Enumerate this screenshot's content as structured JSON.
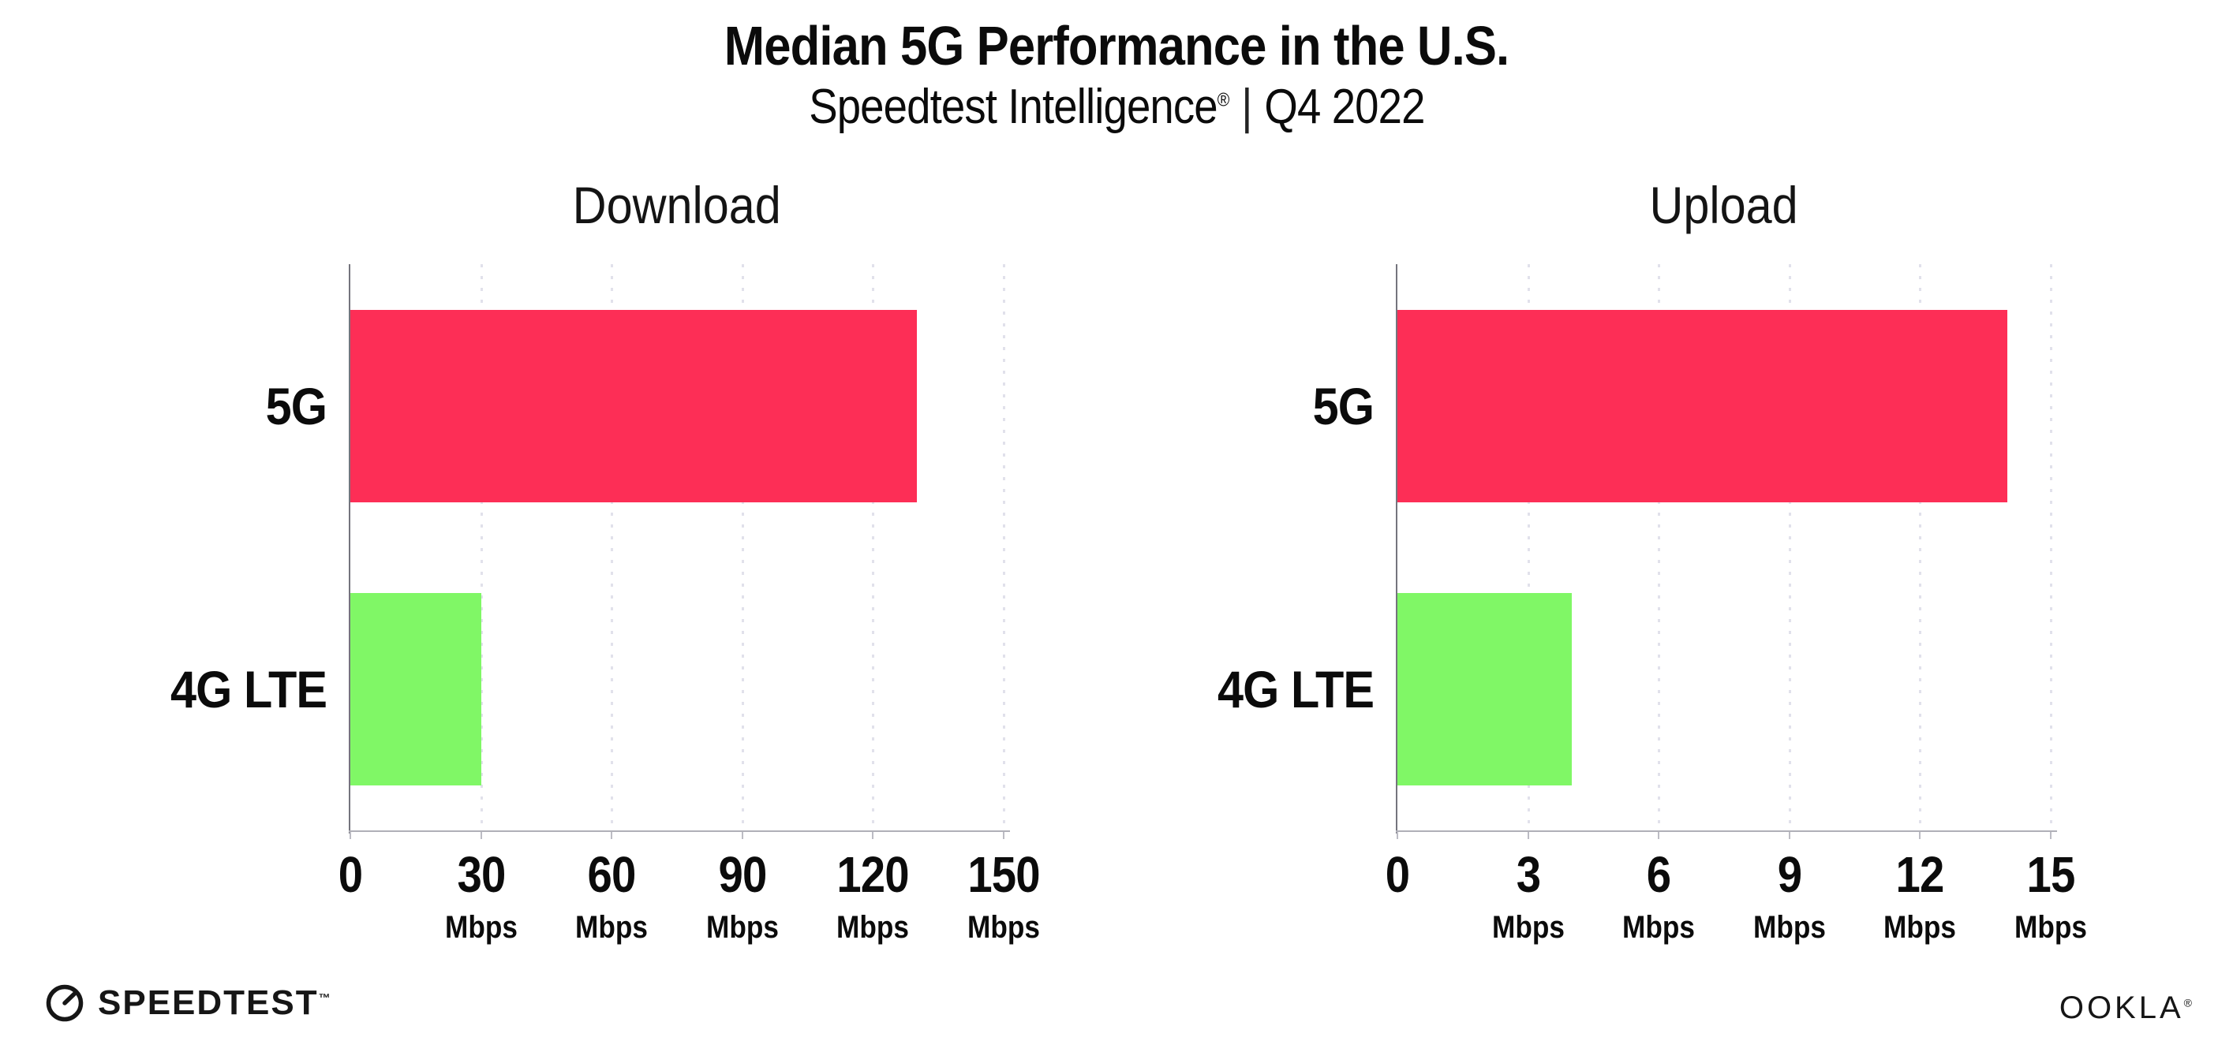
{
  "header": {
    "title": "Median 5G Performance in the U.S.",
    "subtitle_brand": "Speedtest Intelligence",
    "subtitle_reg": "®",
    "subtitle_sep": "|",
    "subtitle_period": "Q4 2022"
  },
  "colors": {
    "bar_5g": "#FD2E56",
    "bar_4g_lte": "#80F766",
    "gridline": "#E1E1EB",
    "y_axis": "#74747D",
    "x_axis": "#B0B0B8",
    "text": "#0B0B0B"
  },
  "chart_data": [
    {
      "type": "bar",
      "orientation": "horizontal",
      "title": "Download",
      "categories": [
        "5G",
        "4G LTE"
      ],
      "values": [
        130,
        30
      ],
      "value_unit": "Mbps",
      "xlim": [
        0,
        150
      ],
      "xticks": [
        0,
        30,
        60,
        90,
        120,
        150
      ],
      "tick_unit_label": "Mbps",
      "unit_shown_on_zero_tick": false,
      "grid": true,
      "legend": "none",
      "bar_colors": [
        "#FD2E56",
        "#80F766"
      ]
    },
    {
      "type": "bar",
      "orientation": "horizontal",
      "title": "Upload",
      "categories": [
        "5G",
        "4G LTE"
      ],
      "values": [
        14,
        4
      ],
      "value_unit": "Mbps",
      "xlim": [
        0,
        15
      ],
      "xticks": [
        0,
        3,
        6,
        9,
        12,
        15
      ],
      "tick_unit_label": "Mbps",
      "unit_shown_on_zero_tick": false,
      "grid": true,
      "legend": "none",
      "bar_colors": [
        "#FD2E56",
        "#80F766"
      ]
    }
  ],
  "footer": {
    "speedtest_label": "SPEEDTEST",
    "speedtest_tm": "™",
    "ookla_label": "OOKLA",
    "ookla_reg": "®"
  }
}
